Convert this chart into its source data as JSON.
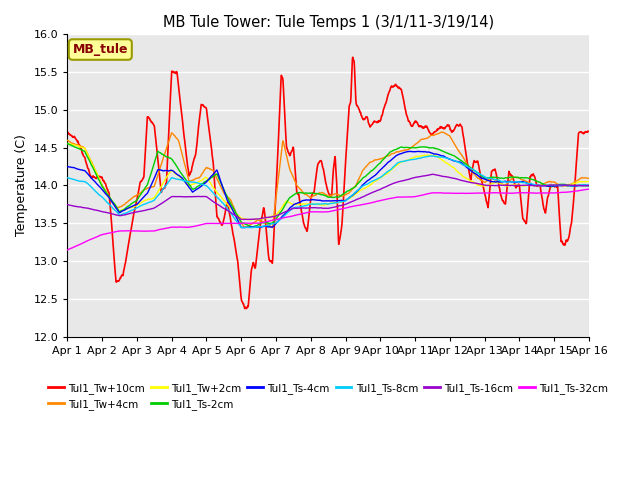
{
  "title": "MB Tule Tower: Tule Temps 1 (3/1/11-3/19/14)",
  "ylabel": "Temperature (C)",
  "ylim": [
    12.0,
    16.0
  ],
  "yticks": [
    12.0,
    12.5,
    13.0,
    13.5,
    14.0,
    14.5,
    15.0,
    15.5,
    16.0
  ],
  "xtick_labels": [
    "Apr 1",
    "Apr 2",
    "Apr 3",
    "Apr 4",
    "Apr 5",
    "Apr 6",
    "Apr 7",
    "Apr 8",
    "Apr 9",
    "Apr 10",
    "Apr 11",
    "Apr 12",
    "Apr 13",
    "Apr 14",
    "Apr 15",
    "Apr 16"
  ],
  "legend_box_color": "#ffff99",
  "legend_box_edge": "#999900",
  "legend_text": "MB_tule",
  "legend_text_color": "#880000",
  "lines": [
    {
      "label": "Tul1_Tw+10cm",
      "color": "#ff0000",
      "lw": 1.2
    },
    {
      "label": "Tul1_Tw+4cm",
      "color": "#ff8800",
      "lw": 1.0
    },
    {
      "label": "Tul1_Tw+2cm",
      "color": "#ffff00",
      "lw": 1.0
    },
    {
      "label": "Tul1_Ts-2cm",
      "color": "#00cc00",
      "lw": 1.0
    },
    {
      "label": "Tul1_Ts-4cm",
      "color": "#0000ff",
      "lw": 1.0
    },
    {
      "label": "Tul1_Ts-8cm",
      "color": "#00ccff",
      "lw": 1.0
    },
    {
      "label": "Tul1_Ts-16cm",
      "color": "#9900cc",
      "lw": 1.0
    },
    {
      "label": "Tul1_Ts-32cm",
      "color": "#ff00ff",
      "lw": 1.0
    }
  ],
  "bg_color": "#ffffff",
  "plot_bg_color": "#e8e8e8",
  "grid_color": "#ffffff"
}
